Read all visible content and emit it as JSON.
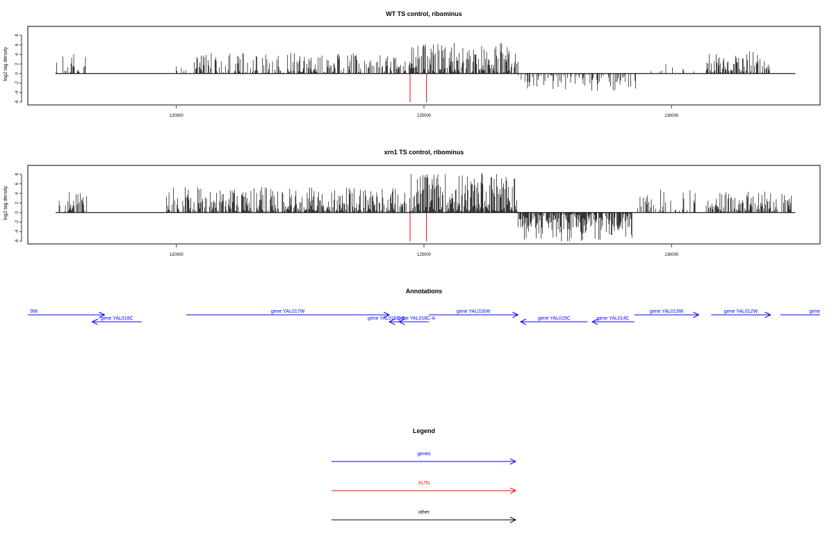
{
  "colors": {
    "gene": "#0000ff",
    "xut": "#ff0000",
    "other": "#000000"
  },
  "chart_data": [
    {
      "type": "bar",
      "title": "WT TS control, ribominus",
      "ylabel": "log2 tag density",
      "ylim": [
        -6,
        9
      ],
      "yticks": [
        -6,
        -4,
        -2,
        0,
        2,
        4,
        6,
        8
      ],
      "xlim": [
        117000,
        133000
      ],
      "xticks": [
        120000,
        125000,
        130000
      ],
      "grid": false,
      "segments": [
        {
          "from": 117570,
          "to": 118200,
          "strand": "+",
          "max": 4.1,
          "density": 0.45
        },
        {
          "from": 119900,
          "to": 120200,
          "strand": "+",
          "max": 1.5,
          "density": 0.15
        },
        {
          "from": 120350,
          "to": 124650,
          "strand": "+",
          "max": 4.3,
          "density": 0.55
        },
        {
          "from": 124700,
          "to": 126900,
          "strand": "+",
          "max": 6.4,
          "density": 0.85
        },
        {
          "from": 126900,
          "to": 129300,
          "strand": "-",
          "max": 3.6,
          "density": 0.4
        },
        {
          "from": 129500,
          "to": 130500,
          "strand": "+",
          "max": 2.0,
          "density": 0.08
        },
        {
          "from": 130700,
          "to": 132000,
          "strand": "+",
          "max": 4.6,
          "density": 0.75
        }
      ],
      "xut_marks": [
        124720,
        125050
      ]
    },
    {
      "type": "bar",
      "title": "xrn1 TS control, ribominus",
      "ylabel": "log2 tag density",
      "ylim": [
        -6,
        9
      ],
      "yticks": [
        -6,
        -4,
        -2,
        0,
        2,
        4,
        6,
        8
      ],
      "xlim": [
        117000,
        133000
      ],
      "xticks": [
        120000,
        125000,
        130000
      ],
      "grid": false,
      "segments": [
        {
          "from": 117570,
          "to": 118200,
          "strand": "+",
          "max": 4.3,
          "density": 0.55
        },
        {
          "from": 119800,
          "to": 124650,
          "strand": "+",
          "max": 5.3,
          "density": 0.85
        },
        {
          "from": 124700,
          "to": 126900,
          "strand": "+",
          "max": 8.3,
          "density": 1.0
        },
        {
          "from": 126900,
          "to": 129200,
          "strand": "-",
          "max": 6.0,
          "density": 0.9
        },
        {
          "from": 129300,
          "to": 130600,
          "strand": "+",
          "max": 4.8,
          "density": 0.35
        },
        {
          "from": 130700,
          "to": 132450,
          "strand": "+",
          "max": 4.4,
          "density": 0.7
        }
      ],
      "xut_marks": [
        124720,
        125050
      ]
    }
  ],
  "annotations": {
    "title": "Annotations",
    "genes": [
      {
        "label": "9W",
        "start": 117000,
        "end": 118550,
        "strand": "+",
        "row": 0,
        "label_x": 117050,
        "anchor": "start"
      },
      {
        "label": "gene YAL018C",
        "start": 118300,
        "end": 119300,
        "strand": "-",
        "row": 1,
        "label_x": 118800,
        "anchor": "middle"
      },
      {
        "label": "gene YAL017W",
        "start": 120200,
        "end": 124300,
        "strand": "+",
        "row": 0,
        "label_x": 122250,
        "anchor": "middle"
      },
      {
        "label": "gene YAL016C-B",
        "start": 124300,
        "end": 124550,
        "strand": "-",
        "row": 1,
        "label_x": 124240,
        "anchor": "middle"
      },
      {
        "label": "gene YAL016C-A",
        "start": 124500,
        "end": 125100,
        "strand": "-",
        "row": 1,
        "label_x": 124850,
        "anchor": "middle"
      },
      {
        "label": "gene YAL016W",
        "start": 125100,
        "end": 126900,
        "strand": "+",
        "row": 0,
        "label_x": 126000,
        "anchor": "middle"
      },
      {
        "label": "gene YAL015C",
        "start": 126950,
        "end": 128300,
        "strand": "-",
        "row": 1,
        "label_x": 127630,
        "anchor": "middle"
      },
      {
        "label": "gene YAL014C",
        "start": 128400,
        "end": 129250,
        "strand": "-",
        "row": 1,
        "label_x": 128820,
        "anchor": "middle"
      },
      {
        "label": "gene YAL013W",
        "start": 129250,
        "end": 130550,
        "strand": "+",
        "row": 0,
        "label_x": 129900,
        "anchor": "middle"
      },
      {
        "label": "gene YAL012W",
        "start": 130800,
        "end": 132000,
        "strand": "+",
        "row": 0,
        "label_x": 131400,
        "anchor": "middle"
      },
      {
        "label": "gene",
        "start": 132200,
        "end": 133000,
        "strand": "+",
        "row": 0,
        "label_x": 133000,
        "anchor": "end"
      }
    ]
  },
  "legend": {
    "title": "Legend",
    "items": [
      {
        "label": "genes",
        "color": "#0000ff"
      },
      {
        "label": "XUTs",
        "color": "#ff0000"
      },
      {
        "label": "other",
        "color": "#000000"
      }
    ]
  }
}
